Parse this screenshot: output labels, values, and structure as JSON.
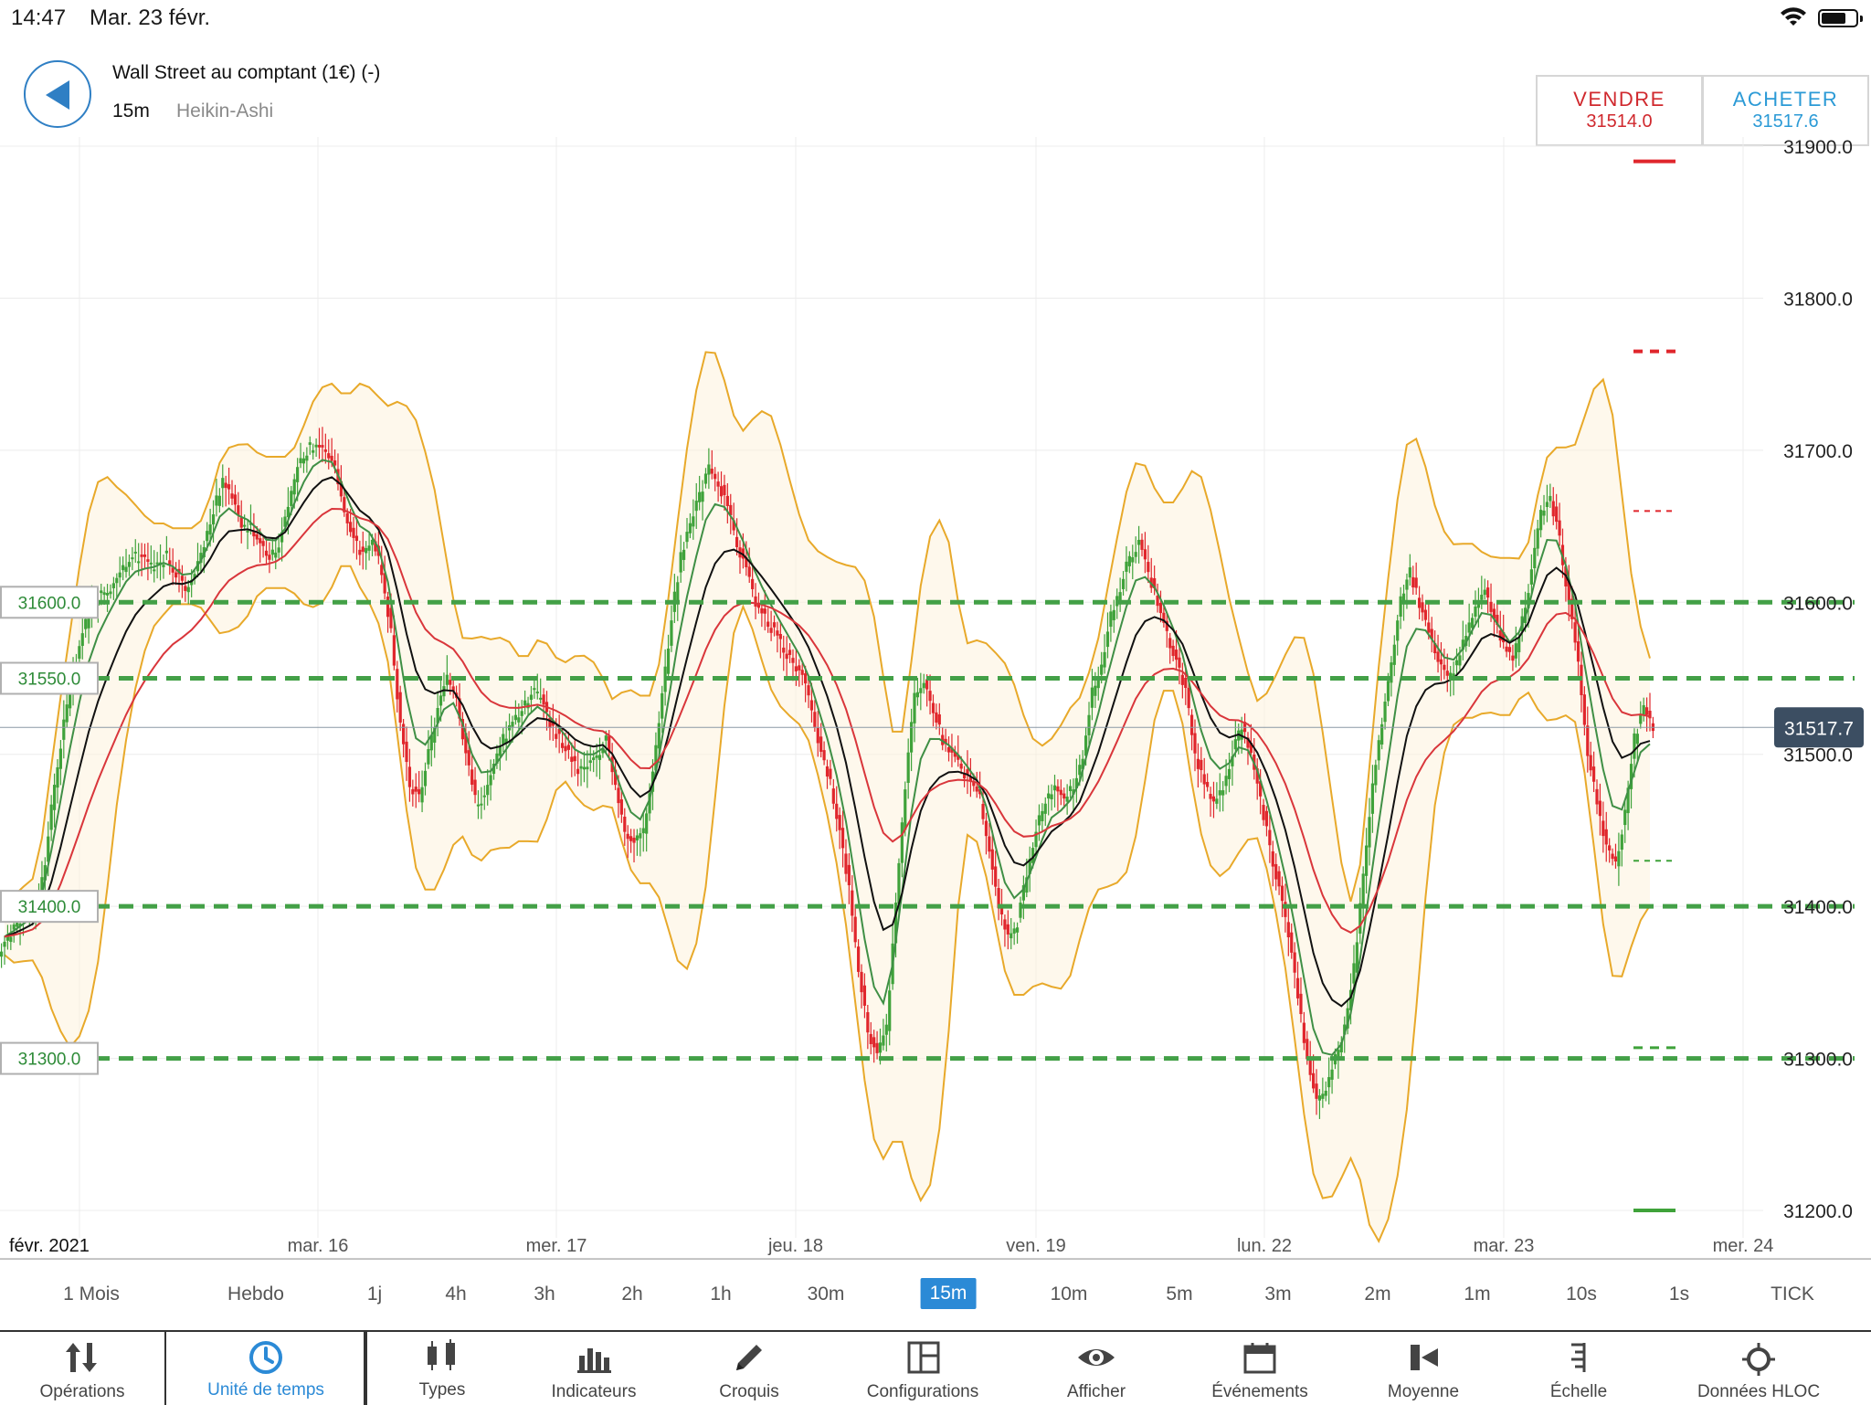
{
  "status": {
    "time": "14:47",
    "date": "Mar. 23 févr."
  },
  "header": {
    "instrument": "Wall Street au comptant (1€) (-)",
    "timeframe": "15m",
    "chart_type": "Heikin-Ashi",
    "sell_label": "VENDRE",
    "sell_price": "31514.0",
    "buy_label": "ACHETER",
    "buy_price": "31517.6"
  },
  "chart_data": {
    "type": "candlestick",
    "chart_style": "Heikin-Ashi",
    "y_ticks": [
      "31900.0",
      "31800.0",
      "31700.0",
      "31600.0",
      "31500.0",
      "31400.0",
      "31300.0",
      "31200.0"
    ],
    "y_range": [
      31180,
      31950
    ],
    "x_ticks": [
      "févr. 2021",
      "mar. 16",
      "mer. 17",
      "jeu. 18",
      "ven. 19",
      "lun. 22",
      "mar. 23",
      "mer. 24"
    ],
    "current_price": "31517.7",
    "levels": [
      "31600.0",
      "31550.0",
      "31400.0",
      "31300.0"
    ],
    "series_colors": {
      "up": "#3fa23a",
      "down": "#e0262c",
      "bollinger": "#e8a92a",
      "ma_fast": "#3f8f45",
      "ma_mid": "#111111",
      "ma_slow": "#d9363b",
      "level": "#43a047"
    },
    "close": [
      31380,
      31390,
      31395,
      31400,
      31430,
      31480,
      31520,
      31555,
      31580,
      31600,
      31605,
      31610,
      31620,
      31630,
      31630,
      31625,
      31625,
      31630,
      31620,
      31610,
      31620,
      31640,
      31660,
      31680,
      31670,
      31650,
      31650,
      31640,
      31630,
      31640,
      31660,
      31690,
      31700,
      31705,
      31700,
      31690,
      31660,
      31640,
      31630,
      31640,
      31620,
      31580,
      31520,
      31480,
      31470,
      31500,
      31530,
      31550,
      31540,
      31500,
      31470,
      31470,
      31490,
      31510,
      31520,
      31530,
      31540,
      31540,
      31520,
      31510,
      31500,
      31490,
      31495,
      31500,
      31510,
      31480,
      31450,
      31440,
      31450,
      31490,
      31540,
      31590,
      31630,
      31650,
      31670,
      31690,
      31680,
      31660,
      31640,
      31620,
      31600,
      31590,
      31580,
      31570,
      31560,
      31550,
      31530,
      31500,
      31480,
      31450,
      31410,
      31360,
      31320,
      31300,
      31320,
      31400,
      31480,
      31540,
      31550,
      31530,
      31510,
      31500,
      31490,
      31480,
      31470,
      31440,
      31400,
      31380,
      31390,
      31420,
      31450,
      31470,
      31480,
      31470,
      31480,
      31500,
      31540,
      31560,
      31590,
      31610,
      31630,
      31640,
      31620,
      31600,
      31580,
      31560,
      31540,
      31500,
      31480,
      31470,
      31480,
      31500,
      31520,
      31500,
      31470,
      31440,
      31410,
      31380,
      31340,
      31300,
      31270,
      31280,
      31300,
      31320,
      31360,
      31420,
      31480,
      31520,
      31560,
      31600,
      31620,
      31600,
      31580,
      31560,
      31550,
      31560,
      31580,
      31600,
      31610,
      31590,
      31570,
      31560,
      31590,
      31620,
      31660,
      31670,
      31640,
      31600,
      31560,
      31500,
      31470,
      31440,
      31430,
      31460,
      31510,
      31530,
      31515
    ]
  },
  "timeframes": [
    "1 Mois",
    "Hebdo",
    "1j",
    "4h",
    "3h",
    "2h",
    "1h",
    "30m",
    "15m",
    "10m",
    "5m",
    "3m",
    "2m",
    "1m",
    "10s",
    "1s",
    "TICK"
  ],
  "active_timeframe": "15m",
  "toolbar": [
    {
      "label": "Opérations",
      "icon": "arrows-updown-icon"
    },
    {
      "label": "Unité de temps",
      "icon": "clock-icon"
    },
    {
      "label": "Types",
      "icon": "candles-icon"
    },
    {
      "label": "Indicateurs",
      "icon": "bar-chart-icon"
    },
    {
      "label": "Croquis",
      "icon": "pencil-icon"
    },
    {
      "label": "Configurations",
      "icon": "layout-icon"
    },
    {
      "label": "Afficher",
      "icon": "eye-icon"
    },
    {
      "label": "Événements",
      "icon": "calendar-icon"
    },
    {
      "label": "Moyenne",
      "icon": "average-icon"
    },
    {
      "label": "Échelle",
      "icon": "scale-icon"
    },
    {
      "label": "Données HLOC",
      "icon": "crosshair-icon"
    }
  ]
}
